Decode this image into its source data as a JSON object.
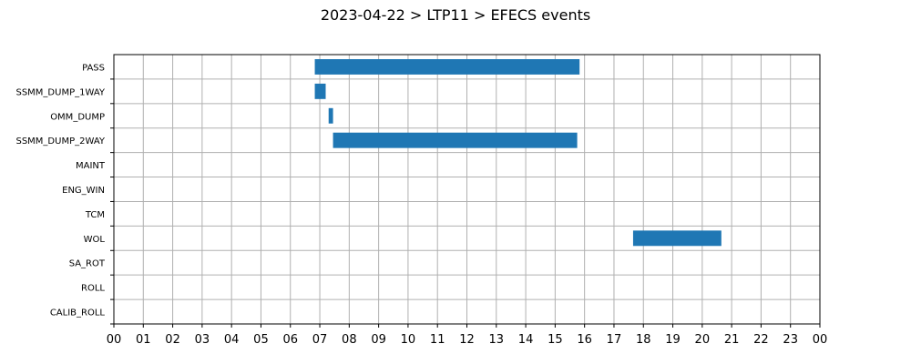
{
  "chart_data": {
    "type": "bar",
    "orientation": "horizontal-gantt",
    "title": "2023-04-22 > LTP11 > EFECS events",
    "xlabel": "",
    "ylabel": "",
    "x_range_hours": [
      0,
      24
    ],
    "x_tick_labels": [
      "00",
      "01",
      "02",
      "03",
      "04",
      "05",
      "06",
      "07",
      "08",
      "09",
      "10",
      "11",
      "12",
      "13",
      "14",
      "15",
      "16",
      "17",
      "18",
      "19",
      "20",
      "21",
      "22",
      "23",
      "00"
    ],
    "categories": [
      "PASS",
      "SSMM_DUMP_1WAY",
      "OMM_DUMP",
      "SSMM_DUMP_2WAY",
      "MAINT",
      "ENG_WIN",
      "TCM",
      "WOL",
      "SA_ROT",
      "ROLL",
      "CALIB_ROLL"
    ],
    "bar_color": "#1f77b4",
    "grid": true,
    "events": [
      {
        "category": "PASS",
        "start_hour": 6.83,
        "end_hour": 15.83
      },
      {
        "category": "SSMM_DUMP_1WAY",
        "start_hour": 6.83,
        "end_hour": 7.2
      },
      {
        "category": "OMM_DUMP",
        "start_hour": 7.3,
        "end_hour": 7.45
      },
      {
        "category": "SSMM_DUMP_2WAY",
        "start_hour": 7.45,
        "end_hour": 15.75
      },
      {
        "category": "WOL",
        "start_hour": 17.65,
        "end_hour": 20.65
      }
    ]
  }
}
